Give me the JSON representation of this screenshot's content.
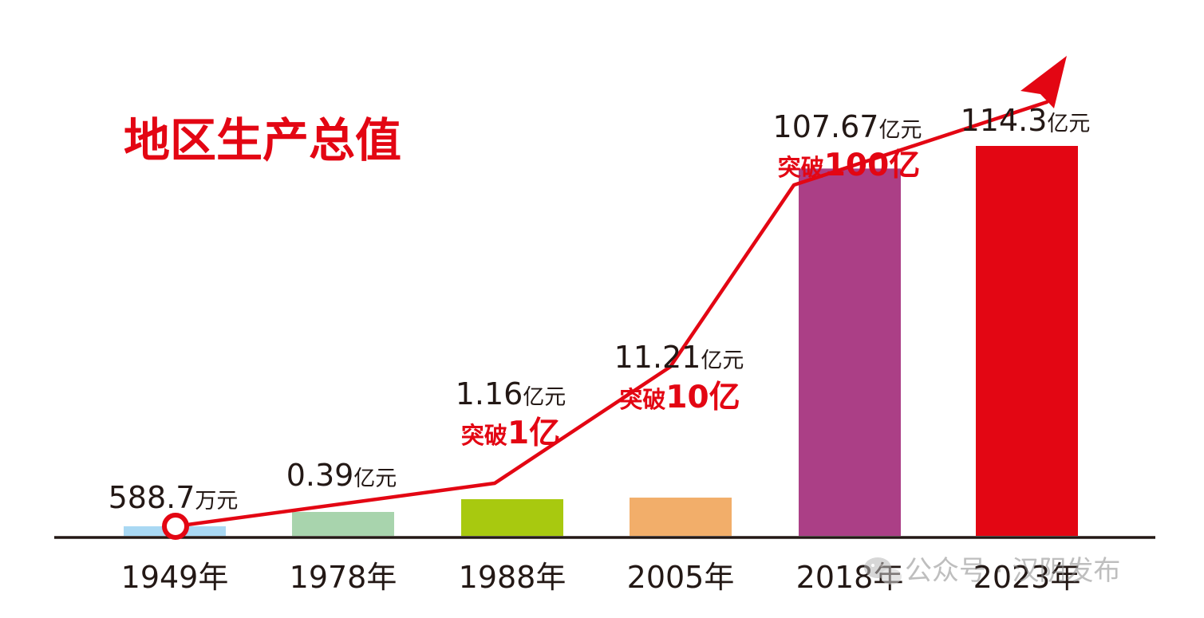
{
  "chart_data": {
    "type": "bar",
    "title": "地区生产总值",
    "categories": [
      "1949年",
      "1978年",
      "1988年",
      "2005年",
      "2018年",
      "2023年"
    ],
    "series": [
      {
        "values": [
          0.05887,
          0.39,
          1.16,
          11.21,
          107.67,
          114.3
        ]
      }
    ],
    "value_labels": [
      {
        "number": "588.7",
        "unit": "万元"
      },
      {
        "number": "0.39",
        "unit": "亿元"
      },
      {
        "number": "1.16",
        "unit": "亿元"
      },
      {
        "number": "11.21",
        "unit": "亿元"
      },
      {
        "number": "107.67",
        "unit": "亿元"
      },
      {
        "number": "114.3",
        "unit": "亿元"
      }
    ],
    "milestones": [
      {
        "prefix": "突破",
        "amount": "1亿",
        "category": "1988年"
      },
      {
        "prefix": "突破",
        "amount": "10亿",
        "category": "2005年"
      },
      {
        "prefix": "突破",
        "amount": "100亿",
        "category": "2018年"
      }
    ],
    "bar_colors": [
      "#a9d8f3",
      "#a8d4ad",
      "#a8c90f",
      "#f2ae6a",
      "#ab3f86",
      "#e30613"
    ],
    "trend_color": "#e30613",
    "title_color": "#e30613",
    "axis_color": "#231815",
    "text_color": "#231815"
  },
  "watermark": {
    "text": "公众号 · 汉阴发布"
  }
}
